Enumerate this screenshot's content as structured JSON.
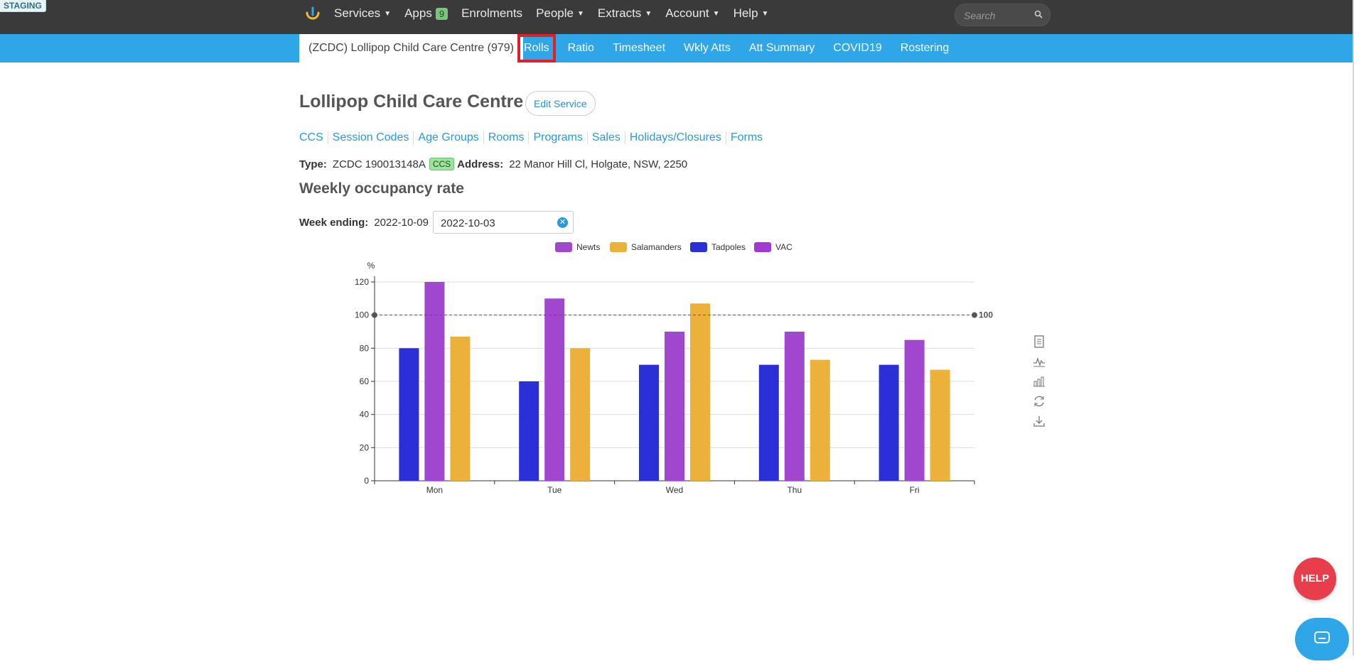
{
  "env_badge": "STAGING",
  "topnav": {
    "items": [
      {
        "label": "Services",
        "caret": true
      },
      {
        "label": "Apps",
        "badge": "9"
      },
      {
        "label": "Enrolments"
      },
      {
        "label": "People",
        "caret": true
      },
      {
        "label": "Extracts",
        "caret": true
      },
      {
        "label": "Account",
        "caret": true
      },
      {
        "label": "Help",
        "caret": true
      }
    ],
    "search_placeholder": "Search"
  },
  "subnav": {
    "service_tab": "(ZCDC) Lollipop Child Care Centre (979)",
    "items": [
      "Rolls",
      "Ratio",
      "Timesheet",
      "Wkly Atts",
      "Att Summary",
      "COVID19",
      "Rostering"
    ],
    "active": "Rolls"
  },
  "page": {
    "title": "Lollipop Child Care Centre",
    "edit_button": "Edit Service",
    "links": [
      "CCS",
      "Session Codes",
      "Age Groups",
      "Rooms",
      "Programs",
      "Sales",
      "Holidays/Closures",
      "Forms"
    ],
    "type_label": "Type:",
    "type_value": "ZCDC 190013148A",
    "type_badge": "CCS",
    "address_label": "Address:",
    "address_value": "22 Manor Hill Cl, Holgate, NSW, 2250",
    "section_title": "Weekly occupancy rate",
    "week_label": "Week ending:",
    "week_value": "2022-10-09",
    "week_input": "2022-10-03"
  },
  "colors": {
    "topbar": "#3a3a3a",
    "subbar": "#2ea6e8",
    "newts": "#a146cf",
    "salamanders": "#ebb13a",
    "tadpoles": "#2a2fd8",
    "vac": "#a13ad4",
    "active_outline": "#e01f26",
    "help": "#e83d4a"
  },
  "chart_data": {
    "type": "bar",
    "title": "",
    "ylabel": "%",
    "xlabel": "",
    "categories": [
      "Mon",
      "Tue",
      "Wed",
      "Thu",
      "Fri"
    ],
    "legend": [
      "Newts",
      "Salamanders",
      "Tadpoles",
      "VAC"
    ],
    "series": [
      {
        "name": "Tadpoles",
        "color": "#2a2fd8",
        "values": [
          80,
          60,
          70,
          70,
          70
        ]
      },
      {
        "name": "Newts",
        "color": "#a146cf",
        "values": [
          120,
          110,
          90,
          90,
          85
        ]
      },
      {
        "name": "Salamanders",
        "color": "#ebb13a",
        "values": [
          87,
          80,
          107,
          73,
          67
        ]
      }
    ],
    "legend_colors": [
      "#a146cf",
      "#ebb13a",
      "#2a2fd8",
      "#a13ad4"
    ],
    "ylim": [
      0,
      120
    ],
    "yticks": [
      0,
      20,
      40,
      60,
      80,
      100,
      120
    ],
    "markline": {
      "value": 100,
      "label": "100"
    },
    "grid": true
  },
  "toolbox": [
    "data-view-icon",
    "line-chart-icon",
    "bar-chart-icon",
    "restore-icon",
    "download-icon"
  ],
  "help_button": "HELP"
}
